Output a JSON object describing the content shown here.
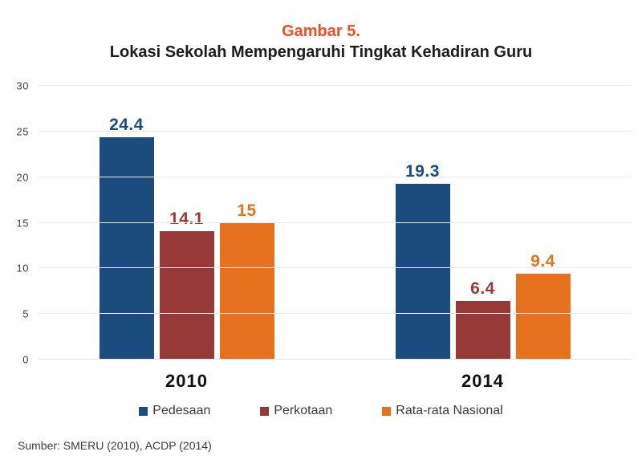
{
  "header": {
    "figure_label": "Gambar 5.",
    "figure_label_color": "#F04E23",
    "title": "Lokasi Sekolah Mempengaruhi Tingkat Kehadiran Guru"
  },
  "chart_data": {
    "type": "bar",
    "title": "Gambar 5.",
    "subtitle": "Lokasi Sekolah Mempengaruhi Tingkat Kehadiran Guru",
    "categories": [
      "2010",
      "2014"
    ],
    "series": [
      {
        "name": "Pedesaan",
        "color": "#1C4B7D",
        "values": [
          24.4,
          19.3
        ]
      },
      {
        "name": "Perkotaan",
        "color": "#973A37",
        "values": [
          14.1,
          6.4
        ]
      },
      {
        "name": "Rata-rata Nasional",
        "color": "#E6711F",
        "values": [
          15,
          9.4
        ]
      }
    ],
    "ylim": [
      0,
      30
    ],
    "yticks": [
      0,
      5,
      10,
      15,
      20,
      25,
      30
    ],
    "grid": "horizontal-light",
    "legend_position": "bottom",
    "value_labels_shown": true
  },
  "source": {
    "text": "Sumber: SMERU (2010), ACDP (2014)"
  }
}
